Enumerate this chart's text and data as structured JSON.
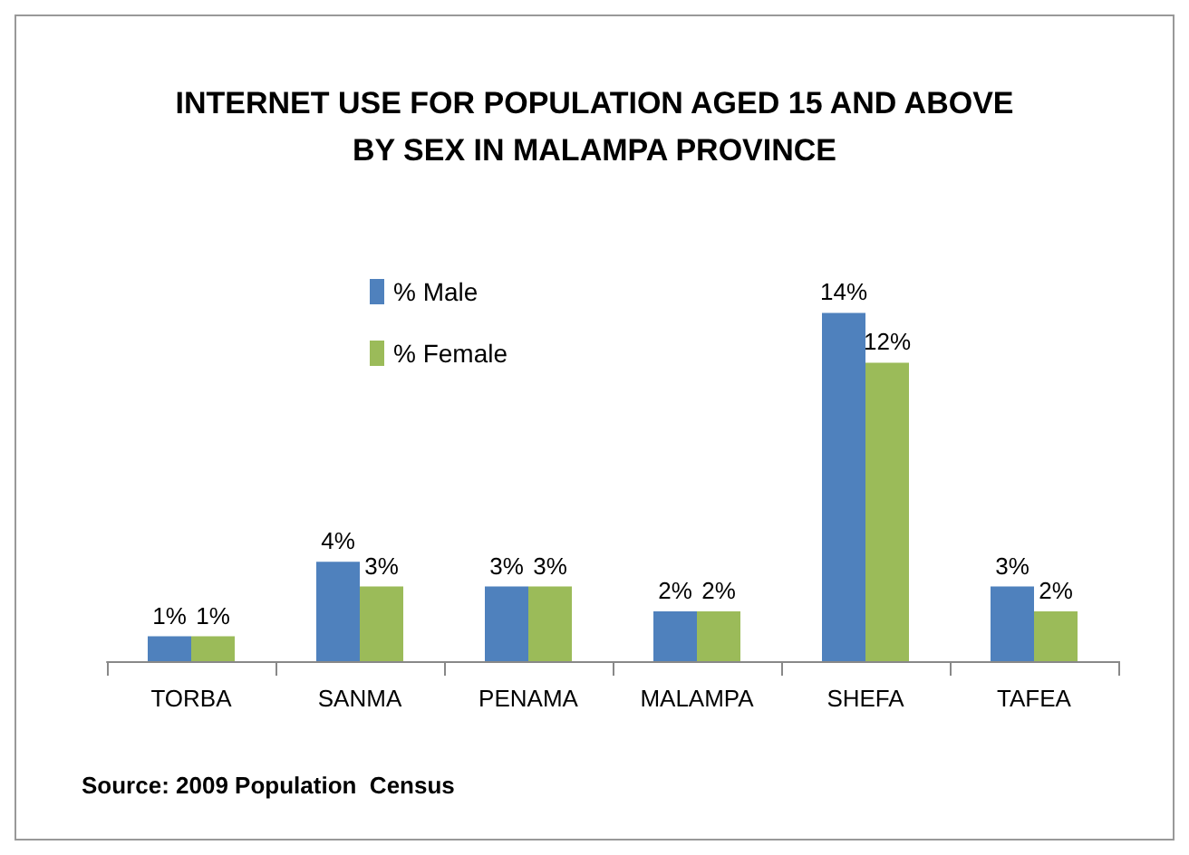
{
  "chart_data": {
    "type": "bar",
    "title": "INTERNET USE FOR POPULATION AGED 15 AND ABOVE\nBY SEX IN MALAMPA PROVINCE",
    "categories": [
      "TORBA",
      "SANMA",
      "PENAMA",
      "MALAMPA",
      "SHEFA",
      "TAFEA"
    ],
    "series": [
      {
        "name": "% Male",
        "color": "#4f81bd",
        "values": [
          1,
          4,
          3,
          2,
          14,
          3
        ],
        "value_labels": [
          "1%",
          "4%",
          "3%",
          "2%",
          "14%",
          "3%"
        ]
      },
      {
        "name": "% Female",
        "color": "#9bbb59",
        "values": [
          1,
          3,
          3,
          2,
          12,
          2
        ],
        "value_labels": [
          "1%",
          "3%",
          "3%",
          "2%",
          "12%",
          "2%"
        ]
      }
    ],
    "legend": "top left",
    "annotations": [
      "Source: 2009 Population  Census"
    ]
  }
}
